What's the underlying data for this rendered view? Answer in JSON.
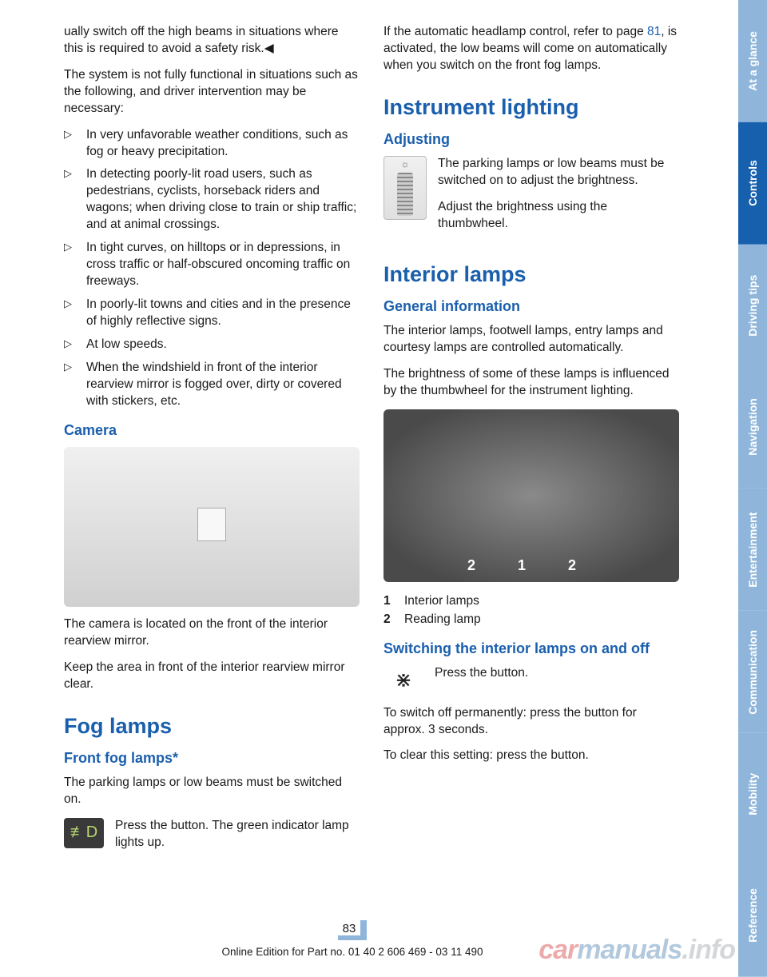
{
  "colors": {
    "heading_blue": "#1a5fad",
    "body_text": "#1a1a1a",
    "tab_active_bg": "#1760ad",
    "tab_active_fg": "#ffffff",
    "tab_inactive_bg": "#8fb5da",
    "tab_inactive_fg": "#ffffff",
    "page_accent": "#8fb5da"
  },
  "left": {
    "para1": "ually switch off the high beams in situations where this is required to avoid a safety risk.◀",
    "para2": "The system is not fully functional in situations such as the following, and driver intervention may be necessary:",
    "bullets": [
      "In very unfavorable weather conditions, such as fog or heavy precipitation.",
      "In detecting poorly-lit road users, such as pedestrians, cyclists, horseback riders and wagons; when driving close to train or ship traffic; and at animal crossings.",
      "In tight curves, on hilltops or in depressions, in cross traffic or half-obscured oncoming traffic on freeways.",
      "In poorly-lit towns and cities and in the pres­ence of highly reflective signs.",
      "At low speeds.",
      "When the windshield in front of the interior rearview mirror is fogged over, dirty or cov­ered with stickers, etc."
    ],
    "h2_camera": "Camera",
    "camera_p1": "The camera is located on the front of the interior rearview mirror.",
    "camera_p2": "Keep the area in front of the interior rearview mirror clear.",
    "h1_fog": "Fog lamps",
    "h2_frontfog": "Front fog lamps*",
    "fog_p1": "The parking lamps or low beams must be switched on.",
    "fog_p2": "Press the button. The green indicator lamp lights up."
  },
  "right": {
    "para1a": "If the automatic headlamp control, refer to page ",
    "para1_ref": "81",
    "para1b": ", is activated, the low beams will come on automatically when you switch on the front fog lamps.",
    "h1_instrument": "Instrument lighting",
    "h2_adjusting": "Adjusting",
    "adj_p1": "The parking lamps or low beams must be switched on to adjust the brightness.",
    "adj_p2": "Adjust the brightness using the thumbwheel.",
    "h1_interior": "Interior lamps",
    "h2_general": "General information",
    "gen_p1": "The interior lamps, footwell lamps, entry lamps and courtesy lamps are controlled automati­cally.",
    "gen_p2": "The brightness of some of these lamps is influ­enced by the thumbwheel for the instrument lighting.",
    "callouts": [
      {
        "num": "1",
        "label": "Interior lamps"
      },
      {
        "num": "2",
        "label": "Reading lamp"
      }
    ],
    "h2_switching": "Switching the interior lamps on and off",
    "sw_p1": "Press the button.",
    "sw_p2": "To switch off permanently: press the button for approx. 3 seconds.",
    "sw_p3": "To clear this setting: press the button.",
    "overhead_labels": "2 1 2"
  },
  "tabs": [
    {
      "label": "At a glance",
      "active": false
    },
    {
      "label": "Controls",
      "active": true
    },
    {
      "label": "Driving tips",
      "active": false
    },
    {
      "label": "Navigation",
      "active": false
    },
    {
      "label": "Entertainment",
      "active": false
    },
    {
      "label": "Communication",
      "active": false
    },
    {
      "label": "Mobility",
      "active": false
    },
    {
      "label": "Reference",
      "active": false
    }
  ],
  "page_number": "83",
  "footer": "Online Edition for Part no. 01 40 2 606 469 - 03 11 490",
  "watermark": {
    "a": "car",
    "b": "manuals",
    "c": ".info"
  }
}
